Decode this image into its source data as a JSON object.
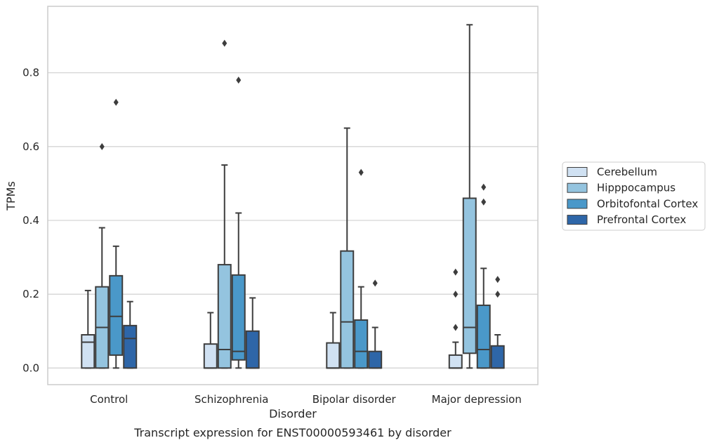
{
  "chart_data": {
    "type": "box",
    "caption": "Transcript expression for ENST00000593461 by disorder",
    "xlabel": "Disorder",
    "ylabel": "TPMs",
    "ylim": [
      -0.045,
      0.98
    ],
    "yticks": [
      0.0,
      0.2,
      0.4,
      0.6,
      0.8
    ],
    "ytick_labels": [
      "0.0",
      "0.2",
      "0.4",
      "0.6",
      "0.8"
    ],
    "grid": "horizontal",
    "legend_position": "right",
    "categories": [
      "Control",
      "Schizophrenia",
      "Bipolar disorder",
      "Major depression"
    ],
    "series": [
      {
        "name": "Cerebellum",
        "color": "#d0e1f2",
        "boxes": [
          {
            "whislo": 0.0,
            "q1": 0.0,
            "med": 0.07,
            "q3": 0.09,
            "whishi": 0.21,
            "fliers": []
          },
          {
            "whislo": 0.0,
            "q1": 0.0,
            "med": 0.0,
            "q3": 0.065,
            "whishi": 0.15,
            "fliers": []
          },
          {
            "whislo": 0.0,
            "q1": 0.0,
            "med": 0.0,
            "q3": 0.068,
            "whishi": 0.15,
            "fliers": []
          },
          {
            "whislo": 0.0,
            "q1": 0.0,
            "med": 0.0,
            "q3": 0.035,
            "whishi": 0.07,
            "fliers": [
              0.11,
              0.2,
              0.26
            ]
          }
        ]
      },
      {
        "name": "Hipppocampus",
        "color": "#94c4df",
        "boxes": [
          {
            "whislo": 0.0,
            "q1": 0.0,
            "med": 0.11,
            "q3": 0.22,
            "whishi": 0.38,
            "fliers": [
              0.6
            ]
          },
          {
            "whislo": 0.0,
            "q1": 0.0,
            "med": 0.05,
            "q3": 0.28,
            "whishi": 0.55,
            "fliers": [
              0.88
            ]
          },
          {
            "whislo": 0.0,
            "q1": 0.0,
            "med": 0.125,
            "q3": 0.317,
            "whishi": 0.65,
            "fliers": []
          },
          {
            "whislo": 0.0,
            "q1": 0.04,
            "med": 0.11,
            "q3": 0.46,
            "whishi": 0.93,
            "fliers": []
          }
        ]
      },
      {
        "name": "Orbitofontal Cortex",
        "color": "#4a98c9",
        "boxes": [
          {
            "whislo": 0.0,
            "q1": 0.035,
            "med": 0.14,
            "q3": 0.25,
            "whishi": 0.33,
            "fliers": [
              0.72
            ]
          },
          {
            "whislo": 0.0,
            "q1": 0.022,
            "med": 0.045,
            "q3": 0.252,
            "whishi": 0.42,
            "fliers": [
              0.78
            ]
          },
          {
            "whislo": 0.0,
            "q1": 0.0,
            "med": 0.045,
            "q3": 0.13,
            "whishi": 0.22,
            "fliers": [
              0.53
            ]
          },
          {
            "whislo": 0.0,
            "q1": 0.0,
            "med": 0.05,
            "q3": 0.17,
            "whishi": 0.27,
            "fliers": [
              0.45,
              0.49
            ]
          }
        ]
      },
      {
        "name": "Prefrontal Cortex",
        "color": "#2e66a8",
        "boxes": [
          {
            "whislo": 0.0,
            "q1": 0.0,
            "med": 0.08,
            "q3": 0.115,
            "whishi": 0.18,
            "fliers": []
          },
          {
            "whislo": 0.0,
            "q1": 0.0,
            "med": 0.0,
            "q3": 0.1,
            "whishi": 0.19,
            "fliers": []
          },
          {
            "whislo": 0.0,
            "q1": 0.0,
            "med": 0.0,
            "q3": 0.045,
            "whishi": 0.11,
            "fliers": [
              0.23
            ]
          },
          {
            "whislo": 0.0,
            "q1": 0.0,
            "med": 0.0,
            "q3": 0.06,
            "whishi": 0.09,
            "fliers": [
              0.2,
              0.24
            ]
          }
        ]
      }
    ],
    "colors": {
      "grid": "#d5d5d5",
      "frame": "#cccccc",
      "edge": "#3d3d3d",
      "text": "#262626"
    }
  }
}
